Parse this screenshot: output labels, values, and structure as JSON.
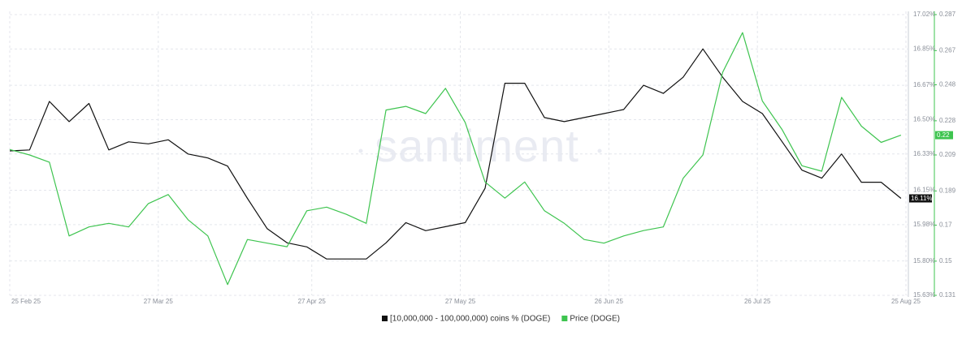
{
  "chart_data": {
    "type": "line",
    "watermark": "santiment",
    "x": [
      "2025-02-25",
      "2025-03-01",
      "2025-03-05",
      "2025-03-09",
      "2025-03-13",
      "2025-03-17",
      "2025-03-21",
      "2025-03-25",
      "2025-03-29",
      "2025-04-02",
      "2025-04-06",
      "2025-04-10",
      "2025-04-14",
      "2025-04-18",
      "2025-04-22",
      "2025-04-26",
      "2025-04-30",
      "2025-05-04",
      "2025-05-08",
      "2025-05-12",
      "2025-05-16",
      "2025-05-20",
      "2025-05-24",
      "2025-05-28",
      "2025-06-01",
      "2025-06-05",
      "2025-06-09",
      "2025-06-13",
      "2025-06-17",
      "2025-06-21",
      "2025-06-25",
      "2025-06-29",
      "2025-07-03",
      "2025-07-07",
      "2025-07-11",
      "2025-07-15",
      "2025-07-19",
      "2025-07-23",
      "2025-07-27",
      "2025-07-31",
      "2025-08-04",
      "2025-08-08",
      "2025-08-12",
      "2025-08-16",
      "2025-08-20",
      "2025-08-24"
    ],
    "xlim": [
      "2025-02-25",
      "2025-08-25"
    ],
    "xticks": [
      {
        "value": "2025-02-25",
        "label": "25 Feb 25"
      },
      {
        "value": "2025-03-27",
        "label": "27 Mar 25"
      },
      {
        "value": "2025-04-27",
        "label": "27 Apr 25"
      },
      {
        "value": "2025-05-27",
        "label": "27 May 25"
      },
      {
        "value": "2025-06-26",
        "label": "26 Jun 25"
      },
      {
        "value": "2025-07-26",
        "label": "26 Jul 25"
      },
      {
        "value": "2025-08-25",
        "label": "25 Aug 25"
      }
    ],
    "ylim": [
      15.63,
      17.02
    ],
    "yticks": [
      {
        "value": 17.02,
        "label": "17.02%"
      },
      {
        "value": 16.85,
        "label": "16.85%"
      },
      {
        "value": 16.67,
        "label": "16.67%"
      },
      {
        "value": 16.5,
        "label": "16.50%"
      },
      {
        "value": 16.33,
        "label": "16.33%"
      },
      {
        "value": 16.15,
        "label": "16.15%"
      },
      {
        "value": 15.98,
        "label": "15.98%"
      },
      {
        "value": 15.8,
        "label": "15.80%"
      },
      {
        "value": 15.63,
        "label": "15.63%"
      }
    ],
    "y2lim": [
      0.131,
      0.287
    ],
    "y2ticks": [
      0.287,
      0.267,
      0.248,
      0.228,
      0.209,
      0.189,
      0.17,
      0.15,
      0.131
    ],
    "grid": true,
    "series": [
      {
        "name": "[10,000,000 - 100,000,000) coins % (DOGE)",
        "color": "#111111",
        "axis": "y",
        "last_label": "16.11%",
        "values": [
          16.345,
          16.35,
          16.59,
          16.49,
          16.58,
          16.35,
          16.39,
          16.38,
          16.4,
          16.33,
          16.31,
          16.27,
          16.11,
          15.96,
          15.89,
          15.87,
          15.81,
          15.81,
          15.81,
          15.89,
          15.99,
          15.95,
          15.97,
          15.99,
          16.16,
          16.68,
          16.68,
          16.51,
          16.49,
          16.51,
          16.53,
          16.55,
          16.67,
          16.63,
          16.71,
          16.85,
          16.71,
          16.59,
          16.53,
          16.39,
          16.25,
          16.21,
          16.33,
          16.19,
          16.19,
          16.11
        ]
      },
      {
        "name": "Price (DOGE)",
        "color": "#3ec44f",
        "axis": "y2",
        "last_label": "0.22",
        "values": [
          0.212,
          0.209,
          0.205,
          0.164,
          0.169,
          0.171,
          0.169,
          0.182,
          0.187,
          0.173,
          0.164,
          0.137,
          0.162,
          0.16,
          0.158,
          0.178,
          0.18,
          0.176,
          0.171,
          0.234,
          0.236,
          0.232,
          0.246,
          0.227,
          0.194,
          0.185,
          0.194,
          0.178,
          0.171,
          0.162,
          0.16,
          0.164,
          0.167,
          0.169,
          0.196,
          0.209,
          0.255,
          0.277,
          0.239,
          0.223,
          0.203,
          0.2,
          0.241,
          0.225,
          0.216,
          0.22
        ]
      }
    ]
  }
}
